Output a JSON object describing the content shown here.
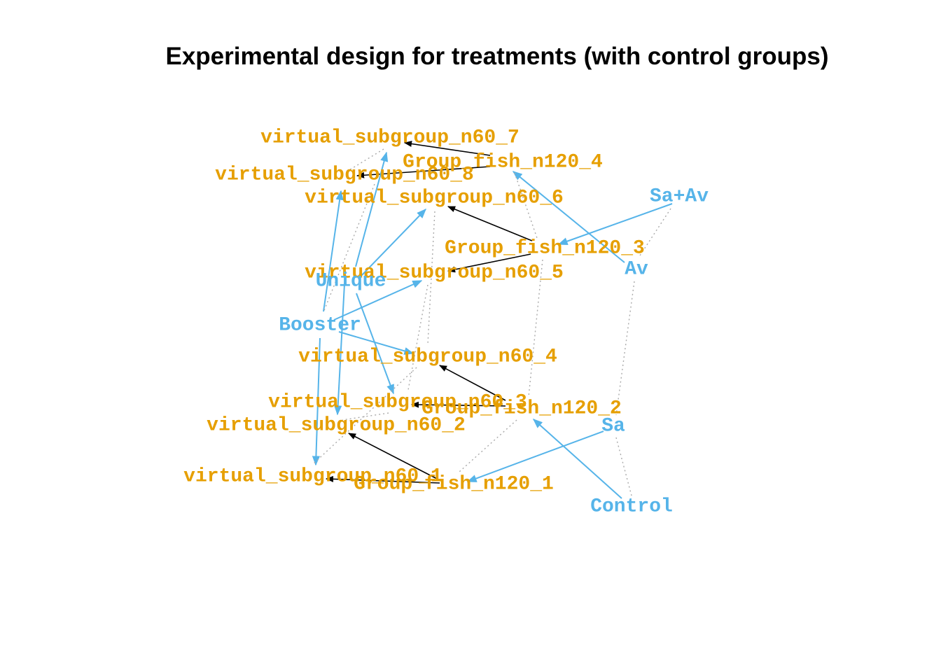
{
  "title": "Experimental design for treatments (with control groups)",
  "colors": {
    "unit_node": "#E69F00",
    "treatment_node": "#56B4E9",
    "structure_edge": "#000000",
    "treatment_edge": "#56B4E9",
    "link_edge": "#AAAAAA"
  },
  "nodes": [
    {
      "id": "vs7",
      "label": "virtual_subgroup_n60_7",
      "kind": "unit"
    },
    {
      "id": "g4",
      "label": "Group_fish_n120_4",
      "kind": "unit"
    },
    {
      "id": "vs8",
      "label": "virtual_subgroup_n60_8",
      "kind": "unit"
    },
    {
      "id": "vs6",
      "label": "virtual_subgroup_n60_6",
      "kind": "unit"
    },
    {
      "id": "saav",
      "label": "Sa+Av",
      "kind": "treatment"
    },
    {
      "id": "g3",
      "label": "Group_fish_n120_3",
      "kind": "unit"
    },
    {
      "id": "vs5",
      "label": "virtual_subgroup_n60_5",
      "kind": "unit"
    },
    {
      "id": "unique",
      "label": "Unique",
      "kind": "treatment"
    },
    {
      "id": "av",
      "label": "Av",
      "kind": "treatment"
    },
    {
      "id": "booster",
      "label": "Booster",
      "kind": "treatment"
    },
    {
      "id": "vs4",
      "label": "virtual_subgroup_n60_4",
      "kind": "unit"
    },
    {
      "id": "vs3",
      "label": "virtual_subgroup_n60_3",
      "kind": "unit"
    },
    {
      "id": "g2",
      "label": "Group_fish_n120_2",
      "kind": "unit"
    },
    {
      "id": "vs2",
      "label": "virtual_subgroup_n60_2",
      "kind": "unit"
    },
    {
      "id": "sa",
      "label": "Sa",
      "kind": "treatment"
    },
    {
      "id": "vs1",
      "label": "virtual_subgroup_n60_1",
      "kind": "unit"
    },
    {
      "id": "g1",
      "label": "Group_fish_n120_1",
      "kind": "unit"
    },
    {
      "id": "control",
      "label": "Control",
      "kind": "treatment"
    }
  ],
  "edges": [
    {
      "from": "g4",
      "to": "vs7",
      "kind": "structure"
    },
    {
      "from": "g4",
      "to": "vs8",
      "kind": "structure"
    },
    {
      "from": "g3",
      "to": "vs6",
      "kind": "structure"
    },
    {
      "from": "g3",
      "to": "vs5",
      "kind": "structure"
    },
    {
      "from": "g2",
      "to": "vs4",
      "kind": "structure"
    },
    {
      "from": "g2",
      "to": "vs3",
      "kind": "structure"
    },
    {
      "from": "g1",
      "to": "vs2",
      "kind": "structure"
    },
    {
      "from": "g1",
      "to": "vs1",
      "kind": "structure"
    },
    {
      "from": "av",
      "to": "g4",
      "kind": "treatment"
    },
    {
      "from": "saav",
      "to": "g3",
      "kind": "treatment"
    },
    {
      "from": "control",
      "to": "g2",
      "kind": "treatment"
    },
    {
      "from": "sa",
      "to": "g1",
      "kind": "treatment"
    },
    {
      "from": "unique",
      "to": "vs7",
      "kind": "treatment"
    },
    {
      "from": "unique",
      "to": "vs6",
      "kind": "treatment"
    },
    {
      "from": "unique",
      "to": "vs3",
      "kind": "treatment"
    },
    {
      "from": "unique",
      "to": "vs2",
      "kind": "treatment"
    },
    {
      "from": "booster",
      "to": "vs8",
      "kind": "treatment"
    },
    {
      "from": "booster",
      "to": "vs5",
      "kind": "treatment"
    },
    {
      "from": "booster",
      "to": "vs4",
      "kind": "treatment"
    },
    {
      "from": "booster",
      "to": "vs1",
      "kind": "treatment"
    },
    {
      "from": "vs7",
      "to": "unique",
      "kind": "link"
    },
    {
      "from": "vs8",
      "to": "booster",
      "kind": "link"
    },
    {
      "from": "vs6",
      "to": "vs4",
      "kind": "link"
    },
    {
      "from": "vs5",
      "to": "vs3",
      "kind": "link"
    },
    {
      "from": "vs4",
      "to": "vs1",
      "kind": "link"
    },
    {
      "from": "vs3",
      "to": "vs2",
      "kind": "link"
    },
    {
      "from": "g4",
      "to": "g3",
      "kind": "link"
    },
    {
      "from": "g3",
      "to": "g2",
      "kind": "link"
    },
    {
      "from": "g2",
      "to": "g1",
      "kind": "link"
    },
    {
      "from": "saav",
      "to": "av",
      "kind": "link"
    },
    {
      "from": "av",
      "to": "sa",
      "kind": "link"
    },
    {
      "from": "sa",
      "to": "control",
      "kind": "link"
    }
  ]
}
